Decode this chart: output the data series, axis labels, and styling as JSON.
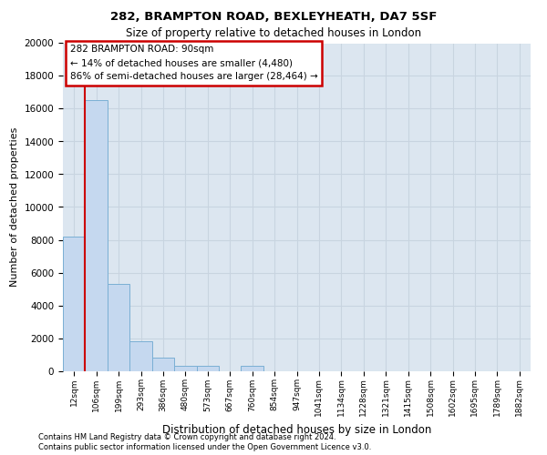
{
  "title1": "282, BRAMPTON ROAD, BEXLEYHEATH, DA7 5SF",
  "title2": "Size of property relative to detached houses in London",
  "xlabel": "Distribution of detached houses by size in London",
  "ylabel": "Number of detached properties",
  "categories": [
    "12sqm",
    "106sqm",
    "199sqm",
    "293sqm",
    "386sqm",
    "480sqm",
    "573sqm",
    "667sqm",
    "760sqm",
    "854sqm",
    "947sqm",
    "1041sqm",
    "1134sqm",
    "1228sqm",
    "1321sqm",
    "1415sqm",
    "1508sqm",
    "1602sqm",
    "1695sqm",
    "1789sqm",
    "1882sqm"
  ],
  "values": [
    8200,
    16500,
    5300,
    1800,
    800,
    300,
    300,
    0,
    300,
    0,
    0,
    0,
    0,
    0,
    0,
    0,
    0,
    0,
    0,
    0,
    0
  ],
  "bar_color": "#c5d8ef",
  "bar_edge_color": "#7aafd4",
  "annotation_text": "282 BRAMPTON ROAD: 90sqm\n← 14% of detached houses are smaller (4,480)\n86% of semi-detached houses are larger (28,464) →",
  "annotation_box_color": "#ffffff",
  "annotation_box_edge": "#cc0000",
  "property_line_color": "#cc0000",
  "ylim": [
    0,
    20000
  ],
  "yticks": [
    0,
    2000,
    4000,
    6000,
    8000,
    10000,
    12000,
    14000,
    16000,
    18000,
    20000
  ],
  "grid_color": "#c8d4e0",
  "bg_color": "#dce6f0",
  "footer1": "Contains HM Land Registry data © Crown copyright and database right 2024.",
  "footer2": "Contains public sector information licensed under the Open Government Licence v3.0."
}
